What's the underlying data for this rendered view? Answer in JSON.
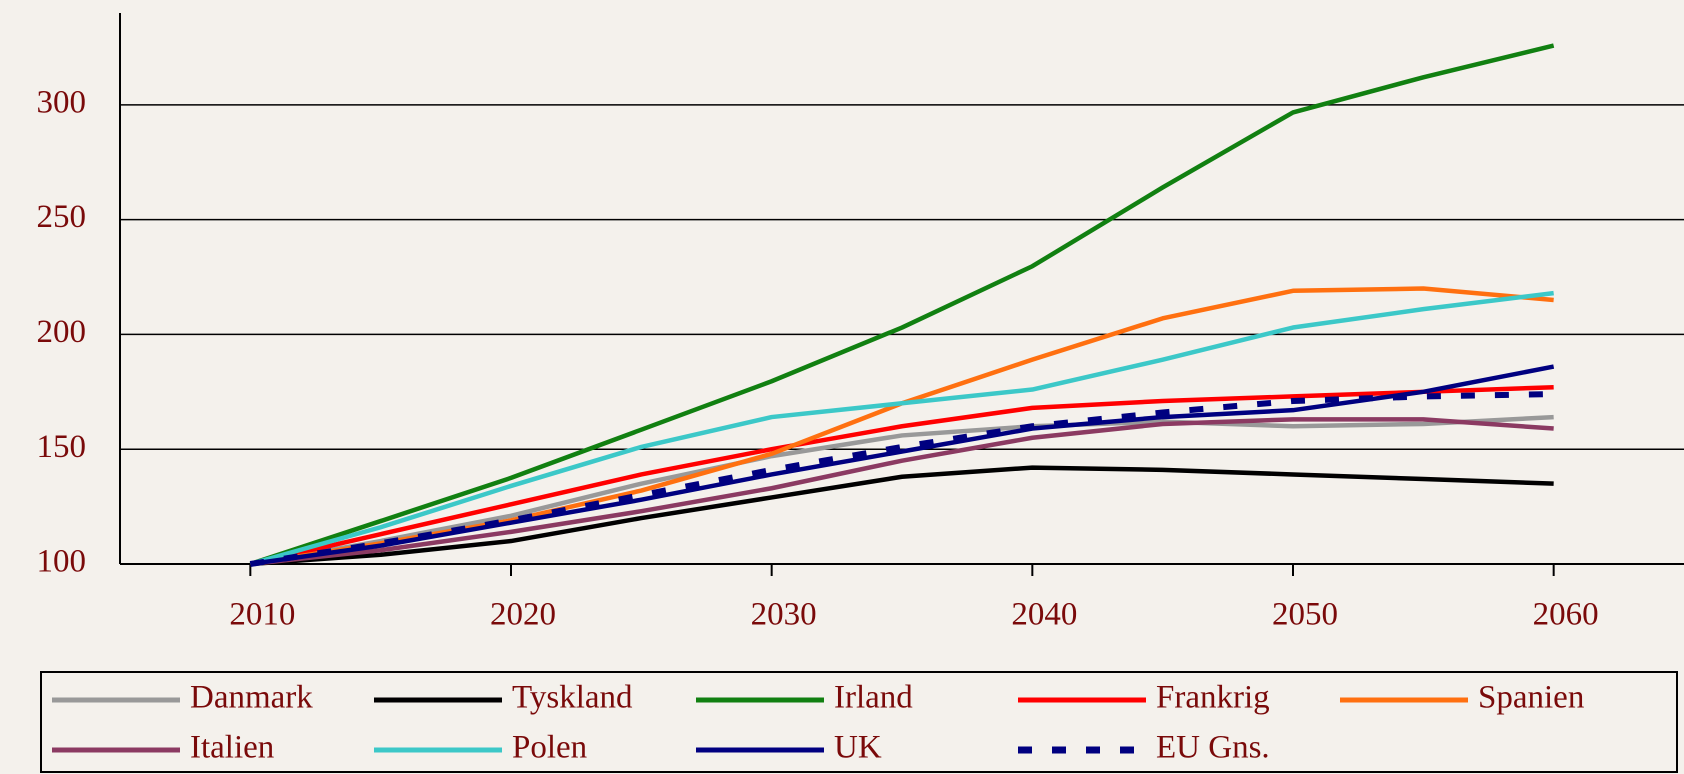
{
  "chart_data": {
    "type": "line",
    "x": [
      2010,
      2015,
      2020,
      2025,
      2030,
      2035,
      2040,
      2045,
      2050,
      2055,
      2060
    ],
    "xlim": [
      2005,
      2065
    ],
    "xticks": [
      2010,
      2020,
      2030,
      2040,
      2050,
      2060
    ],
    "ylim": [
      100,
      340
    ],
    "yticks": [
      100,
      150,
      200,
      250,
      300
    ],
    "grid": true,
    "legend": "bottom",
    "series": [
      {
        "name": "Danmark",
        "color": "#999999",
        "values": [
          100,
          110,
          121,
          135,
          147,
          156,
          160,
          162,
          160,
          161,
          164
        ]
      },
      {
        "name": "Tyskland",
        "color": "#000000",
        "values": [
          100,
          104,
          110,
          120,
          129,
          138,
          142,
          141,
          139,
          137,
          135
        ]
      },
      {
        "name": "Irland",
        "color": "#118011",
        "values": [
          100,
          118.7,
          137.5,
          158.5,
          179.6,
          203,
          229.7,
          264,
          296.7,
          312,
          325.8
        ]
      },
      {
        "name": "Frankrig",
        "color": "#ff0000",
        "values": [
          100,
          113,
          126,
          139,
          150,
          160,
          168,
          171,
          173,
          175,
          177
        ]
      },
      {
        "name": "Spanien",
        "color": "#ff7010",
        "values": [
          100,
          109,
          119,
          132,
          148,
          170,
          189,
          207,
          219,
          220,
          215
        ]
      },
      {
        "name": "Italien",
        "color": "#8b3a62",
        "values": [
          100,
          106,
          114,
          123,
          133,
          145,
          155,
          161,
          163,
          163,
          159
        ]
      },
      {
        "name": "Polen",
        "color": "#3cc8c8",
        "values": [
          100,
          116,
          134,
          151,
          164,
          170,
          176,
          189,
          203,
          211,
          218
        ]
      },
      {
        "name": "UK",
        "color": "#000080",
        "values": [
          100,
          108,
          118,
          128,
          139,
          149,
          159,
          164,
          167,
          175,
          186
        ]
      },
      {
        "name": "EU Gns.",
        "color": "#000080",
        "dashed": true,
        "values": [
          100,
          109,
          119,
          130,
          141,
          151,
          160,
          166,
          171,
          173,
          174
        ]
      }
    ]
  }
}
